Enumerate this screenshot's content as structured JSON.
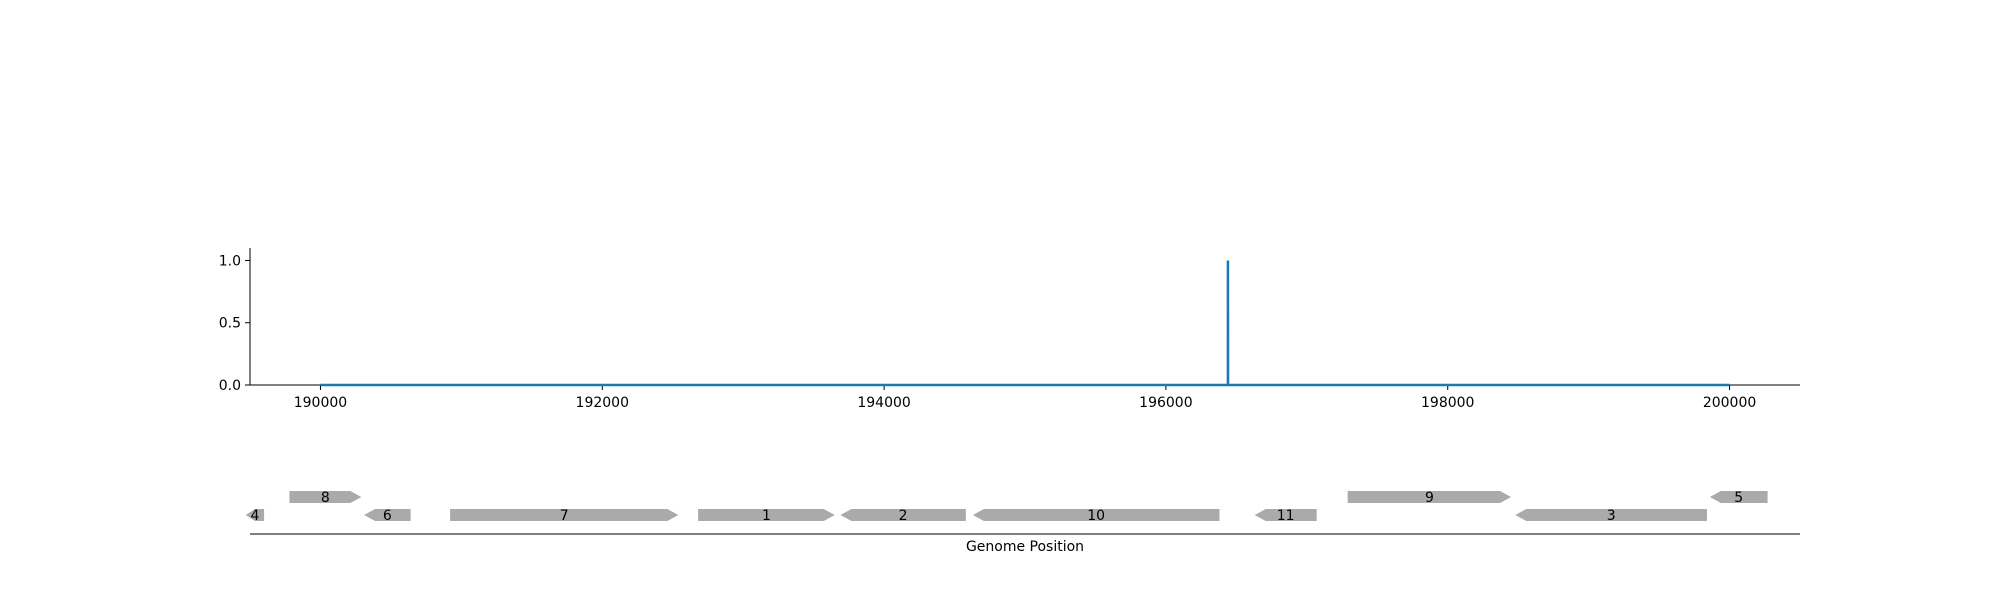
{
  "chart_data": [
    {
      "type": "line",
      "x": [
        190000,
        196440,
        196440,
        196440,
        196441,
        200000
      ],
      "series": [
        {
          "values": [
            0.0,
            0.0,
            0.0,
            1.0,
            0.0,
            0.0
          ],
          "color": "#1f77b4"
        }
      ],
      "xlim": [
        189500,
        200500
      ],
      "ylim": [
        0,
        1.1
      ],
      "xticks": [
        190000,
        192000,
        194000,
        196000,
        198000,
        200000
      ],
      "xtick_labels": [
        "190000",
        "192000",
        "194000",
        "196000",
        "198000",
        "200000"
      ],
      "yticks": [
        0.0,
        0.5,
        1.0
      ],
      "ytick_labels": [
        "0.0",
        "0.5",
        "1.0"
      ],
      "grid": false
    },
    {
      "type": "gene_track",
      "xlabel": "Genome Position",
      "xlim": [
        189500,
        200500
      ],
      "gene_color": "#aaaaaa",
      "genes": [
        {
          "label": "4",
          "start": 189470,
          "end": 189600,
          "strand": "-",
          "row": 0
        },
        {
          "label": "8",
          "start": 189780,
          "end": 190290,
          "strand": "+",
          "row": 1
        },
        {
          "label": "6",
          "start": 190310,
          "end": 190640,
          "strand": "-",
          "row": 0
        },
        {
          "label": "7",
          "start": 190920,
          "end": 192540,
          "strand": "+",
          "row": 0
        },
        {
          "label": "1",
          "start": 192680,
          "end": 193650,
          "strand": "+",
          "row": 0
        },
        {
          "label": "2",
          "start": 193690,
          "end": 194580,
          "strand": "-",
          "row": 0
        },
        {
          "label": "10",
          "start": 194630,
          "end": 196380,
          "strand": "-",
          "row": 0
        },
        {
          "label": "11",
          "start": 196630,
          "end": 197070,
          "strand": "-",
          "row": 0
        },
        {
          "label": "9",
          "start": 197290,
          "end": 198450,
          "strand": "+",
          "row": 1
        },
        {
          "label": "3",
          "start": 198480,
          "end": 199840,
          "strand": "-",
          "row": 0
        },
        {
          "label": "5",
          "start": 199860,
          "end": 200270,
          "strand": "-",
          "row": 1
        }
      ]
    }
  ]
}
